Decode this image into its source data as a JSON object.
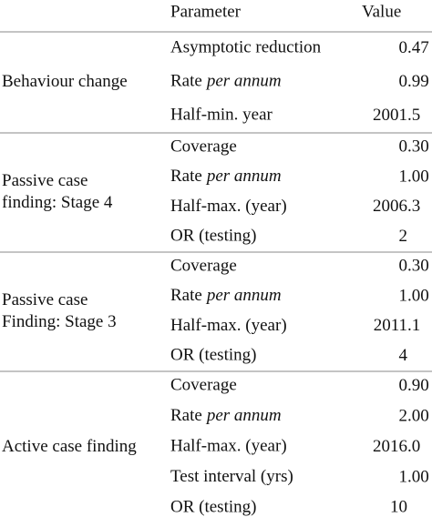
{
  "header": {
    "parameter": "Parameter",
    "value": "Value"
  },
  "groups": [
    {
      "label": [
        "Behaviour change"
      ],
      "rows": [
        {
          "parameter": "Asymptotic reduction",
          "value": "0.47"
        },
        {
          "parameter": "Rate",
          "parameter_em": "per annum",
          "value": "0.99"
        },
        {
          "parameter": "Half-min. year",
          "value": "2001.5"
        }
      ]
    },
    {
      "label": [
        "Passive case",
        "finding: Stage 4"
      ],
      "rows": [
        {
          "parameter": "Coverage",
          "value": "0.30"
        },
        {
          "parameter": "Rate",
          "parameter_em": "per annum",
          "value": "1.00"
        },
        {
          "parameter": "Half-max. (year)",
          "value": "2006.3"
        },
        {
          "parameter": "OR (testing)",
          "value": "2"
        }
      ]
    },
    {
      "label": [
        "Passive case",
        "Finding: Stage 3"
      ],
      "rows": [
        {
          "parameter": "Coverage",
          "value": "0.30"
        },
        {
          "parameter": "Rate",
          "parameter_em": "per annum",
          "value": "1.00"
        },
        {
          "parameter": "Half-max. (year)",
          "value": "2011.1"
        },
        {
          "parameter": "OR (testing)",
          "value": "4"
        }
      ]
    },
    {
      "label": [
        "Active case finding"
      ],
      "rows": [
        {
          "parameter": "Coverage",
          "value": "0.90"
        },
        {
          "parameter": "Rate",
          "parameter_em": "per annum",
          "value": "2.00"
        },
        {
          "parameter": "Half-max. (year)",
          "value": "2016.0"
        },
        {
          "parameter": "Test interval (yrs)",
          "value": "1.00"
        },
        {
          "parameter": "OR (testing)",
          "value": "10"
        }
      ]
    }
  ]
}
